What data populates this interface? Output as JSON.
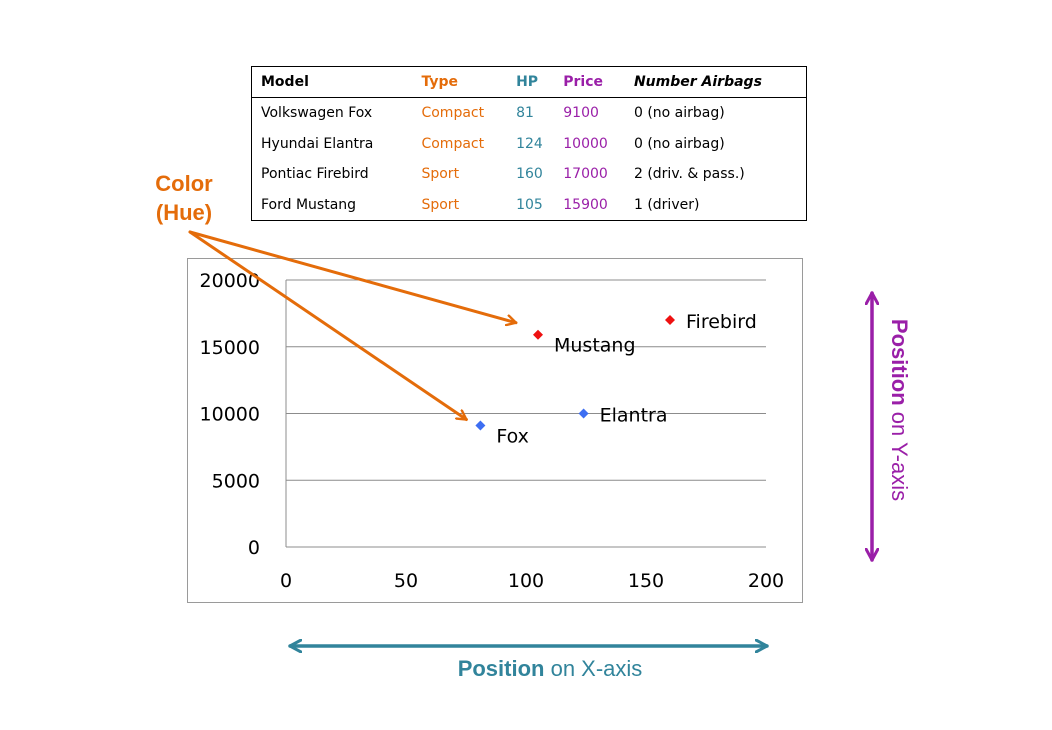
{
  "table": {
    "columns": [
      "Model",
      "Type",
      "HP",
      "Price",
      "Number Airbags"
    ],
    "rows": [
      [
        "Volkswagen Fox",
        "Compact",
        "81",
        "9100",
        "0 (no airbag)"
      ],
      [
        "Hyundai Elantra",
        "Compact",
        "124",
        "10000",
        "0 (no airbag)"
      ],
      [
        "Pontiac Firebird",
        "Sport",
        "160",
        "17000",
        "2 (driv. & pass.)"
      ],
      [
        "Ford Mustang",
        "Sport",
        "105",
        "15900",
        "1  (driver)"
      ]
    ]
  },
  "colors": {
    "compact": "#3d6ef2",
    "sport": "#ee1111",
    "hue_annotation": "#e46c0a",
    "x_axis_annotation": "#31849b",
    "y_axis_annotation": "#9a1fa8",
    "gridline": "#8c8c8c"
  },
  "chart_data": {
    "type": "scatter",
    "xlim": [
      0,
      200
    ],
    "ylim": [
      0,
      20000
    ],
    "x_ticks": [
      0,
      50,
      100,
      150,
      200
    ],
    "y_ticks": [
      0,
      5000,
      10000,
      15000,
      20000
    ],
    "grid": "horizontal",
    "points": [
      {
        "label": "Fox",
        "x": 81,
        "y": 9100,
        "group": "compact",
        "label_side": "right-below"
      },
      {
        "label": "Elantra",
        "x": 124,
        "y": 10000,
        "group": "compact",
        "label_side": "right"
      },
      {
        "label": "Firebird",
        "x": 160,
        "y": 17000,
        "group": "sport",
        "label_side": "right"
      },
      {
        "label": "Mustang",
        "x": 105,
        "y": 15900,
        "group": "sport",
        "label_side": "right-below"
      }
    ]
  },
  "annotations": {
    "hue_label_line1": "Color",
    "hue_label_line2": "(Hue)",
    "x_axis_bold": "Position",
    "x_axis_rest": " on X-axis",
    "y_axis_bold": "Position",
    "y_axis_rest": " on Y-axis"
  }
}
